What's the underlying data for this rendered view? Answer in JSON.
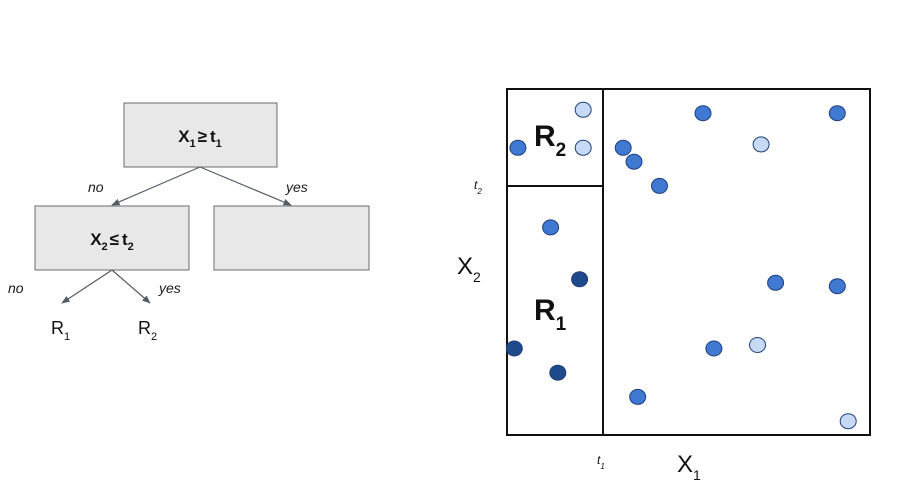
{
  "tree": {
    "root": {
      "var": "X",
      "var_sub": "1",
      "op": "≥",
      "thr": "t",
      "thr_sub": "1"
    },
    "left_node": {
      "var": "X",
      "var_sub": "2",
      "op": "≤",
      "thr": "t",
      "thr_sub": "2"
    },
    "branch_labels": {
      "root_no": "no",
      "root_yes": "yes",
      "left_no": "no",
      "left_yes": "yes"
    },
    "leaves": [
      {
        "name": "R",
        "sub": "1"
      },
      {
        "name": "R",
        "sub": "2"
      }
    ]
  },
  "partition": {
    "axes": {
      "x": "X",
      "x_sub": "1",
      "y": "X",
      "y_sub": "2"
    },
    "thresholds": {
      "t1": {
        "name": "t",
        "sub": "1"
      },
      "t2": {
        "name": "t",
        "sub": "2"
      }
    },
    "regions": [
      {
        "name": "R",
        "sub": "1"
      },
      {
        "name": "R",
        "sub": "2"
      }
    ],
    "point_colors": {
      "light": "#c6d9f5",
      "medium": "#3f79d1",
      "dark": "#1e4a8c"
    },
    "points": [
      {
        "id": "p1",
        "x": 0.21,
        "y": 0.94,
        "shade": "light"
      },
      {
        "id": "p2",
        "x": 0.03,
        "y": 0.83,
        "shade": "medium"
      },
      {
        "id": "p3",
        "x": 0.21,
        "y": 0.83,
        "shade": "light"
      },
      {
        "id": "p4",
        "x": 0.32,
        "y": 0.83,
        "shade": "medium"
      },
      {
        "id": "p5",
        "x": 0.35,
        "y": 0.79,
        "shade": "medium"
      },
      {
        "id": "p6",
        "x": 0.42,
        "y": 0.72,
        "shade": "medium"
      },
      {
        "id": "p7",
        "x": 0.54,
        "y": 0.93,
        "shade": "medium"
      },
      {
        "id": "p8",
        "x": 0.7,
        "y": 0.84,
        "shade": "light"
      },
      {
        "id": "p9",
        "x": 0.91,
        "y": 0.93,
        "shade": "medium"
      },
      {
        "id": "p10",
        "x": 0.12,
        "y": 0.6,
        "shade": "medium"
      },
      {
        "id": "p11",
        "x": 0.2,
        "y": 0.45,
        "shade": "dark"
      },
      {
        "id": "p12",
        "x": 0.74,
        "y": 0.44,
        "shade": "medium"
      },
      {
        "id": "p13",
        "x": 0.91,
        "y": 0.43,
        "shade": "medium"
      },
      {
        "id": "p14",
        "x": 0.02,
        "y": 0.25,
        "shade": "dark"
      },
      {
        "id": "p15",
        "x": 0.57,
        "y": 0.25,
        "shade": "medium"
      },
      {
        "id": "p16",
        "x": 0.69,
        "y": 0.26,
        "shade": "light"
      },
      {
        "id": "p17",
        "x": 0.14,
        "y": 0.18,
        "shade": "dark"
      },
      {
        "id": "p18",
        "x": 0.36,
        "y": 0.11,
        "shade": "medium"
      },
      {
        "id": "p19",
        "x": 0.94,
        "y": 0.04,
        "shade": "light"
      }
    ]
  }
}
